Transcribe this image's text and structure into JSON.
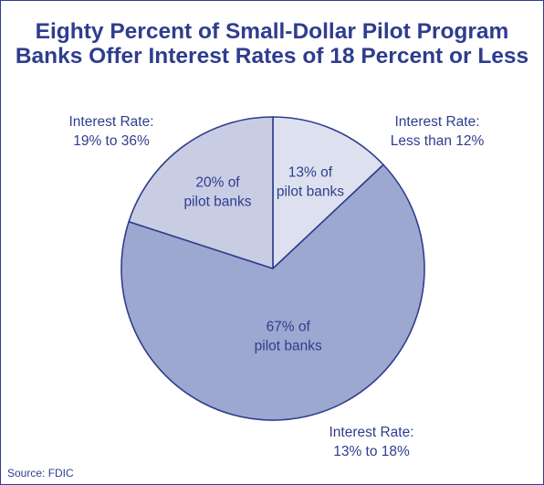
{
  "chart_data": {
    "type": "pie",
    "title_lines": [
      "Eighty Percent of Small-Dollar Pilot Program",
      "Banks Offer Interest Rates of 18 Percent or Less"
    ],
    "unit": "% of pilot banks",
    "slices": [
      {
        "category_lines": [
          "Interest Rate:",
          "Less than 12%"
        ],
        "value": 13,
        "label_lines": [
          "13% of",
          "pilot banks"
        ],
        "color": "#dde1ef"
      },
      {
        "category_lines": [
          "Interest Rate:",
          "13% to 18%"
        ],
        "value": 67,
        "label_lines": [
          "67% of",
          "pilot banks"
        ],
        "color": "#9da8d0"
      },
      {
        "category_lines": [
          "Interest Rate:",
          "19% to 36%"
        ],
        "value": 20,
        "label_lines": [
          "20% of",
          "pilot banks"
        ],
        "color": "#c8cde3"
      }
    ],
    "start_angle_deg": 0,
    "direction": "clockwise",
    "legend": "none"
  },
  "colors": {
    "text": "#2f3d8f",
    "slice_border": "#2f3d8f",
    "background": "#ffffff"
  },
  "source": "Source: FDIC"
}
